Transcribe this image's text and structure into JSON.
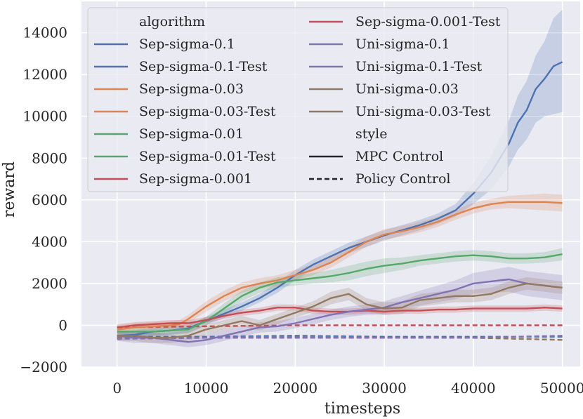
{
  "chart_data": {
    "type": "line",
    "title": "",
    "xlabel": "timesteps",
    "ylabel": "reward",
    "xlim": [
      -4000,
      52000
    ],
    "ylim": [
      -2000,
      15500
    ],
    "xticks": [
      0,
      10000,
      20000,
      30000,
      40000,
      50000
    ],
    "xtick_labels": [
      "0",
      "10000",
      "20000",
      "30000",
      "40000",
      "50000"
    ],
    "yticks": [
      -2000,
      0,
      2000,
      4000,
      6000,
      8000,
      10000,
      12000,
      14000
    ],
    "ytick_labels": [
      "−2000",
      "0",
      "2000",
      "4000",
      "6000",
      "8000",
      "10000",
      "12000",
      "14000"
    ],
    "grid": true,
    "background": "#eaeaf2",
    "legend": {
      "placement": "top-left",
      "left_column": [
        {
          "label": "algorithm",
          "kind": "header"
        },
        {
          "label": "Sep-sigma-0.1",
          "kind": "line",
          "color": "#4c72b0",
          "dash": "solid"
        },
        {
          "label": "Sep-sigma-0.1-Test",
          "kind": "line",
          "color": "#4c72b0",
          "dash": "solid"
        },
        {
          "label": "Sep-sigma-0.03",
          "kind": "line",
          "color": "#dd8452",
          "dash": "solid"
        },
        {
          "label": "Sep-sigma-0.03-Test",
          "kind": "line",
          "color": "#dd8452",
          "dash": "solid"
        },
        {
          "label": "Sep-sigma-0.01",
          "kind": "line",
          "color": "#55a868",
          "dash": "solid"
        },
        {
          "label": "Sep-sigma-0.01-Test",
          "kind": "line",
          "color": "#55a868",
          "dash": "solid"
        },
        {
          "label": "Sep-sigma-0.001",
          "kind": "line",
          "color": "#c44e52",
          "dash": "solid"
        }
      ],
      "right_column": [
        {
          "label": "Sep-sigma-0.001-Test",
          "kind": "line",
          "color": "#c44e52",
          "dash": "solid"
        },
        {
          "label": "Uni-sigma-0.1",
          "kind": "line",
          "color": "#8172b3",
          "dash": "solid"
        },
        {
          "label": "Uni-sigma-0.1-Test",
          "kind": "line",
          "color": "#8172b3",
          "dash": "solid"
        },
        {
          "label": "Uni-sigma-0.03",
          "kind": "line",
          "color": "#937860",
          "dash": "solid"
        },
        {
          "label": "Uni-sigma-0.03-Test",
          "kind": "line",
          "color": "#937860",
          "dash": "solid"
        },
        {
          "label": "style",
          "kind": "header"
        },
        {
          "label": "MPC Control",
          "kind": "line",
          "color": "#262626",
          "dash": "solid"
        },
        {
          "label": "Policy Control",
          "kind": "line",
          "color": "#262626",
          "dash": "dashed"
        }
      ]
    },
    "series": [
      {
        "name": "Sep-sigma-0.1",
        "color": "#4c72b0",
        "style": "solid",
        "x": [
          0,
          2000,
          4000,
          6000,
          8000,
          10000,
          12000,
          14000,
          16000,
          18000,
          20000,
          22000,
          24000,
          26000,
          28000,
          30000,
          32000,
          34000,
          36000,
          38000,
          40000,
          42000,
          44000,
          45000,
          46000,
          47000,
          48000,
          49000,
          50000
        ],
        "y": [
          -500,
          -450,
          -300,
          -250,
          -150,
          200,
          550,
          900,
          1300,
          1800,
          2400,
          2900,
          3300,
          3700,
          4000,
          4300,
          4550,
          4800,
          5100,
          5500,
          6300,
          7300,
          8700,
          9700,
          10300,
          11300,
          11800,
          12400,
          12600
        ],
        "lower": [
          -700,
          -650,
          -500,
          -450,
          -350,
          0,
          350,
          700,
          1100,
          1550,
          2150,
          2650,
          3050,
          3450,
          3750,
          4050,
          4300,
          4550,
          4850,
          5200,
          5800,
          6500,
          7600,
          8400,
          8900,
          9700,
          10000,
          10100,
          10200
        ],
        "upper": [
          -300,
          -250,
          -100,
          -50,
          50,
          400,
          750,
          1100,
          1500,
          2050,
          2650,
          3150,
          3550,
          3950,
          4250,
          4550,
          4800,
          5050,
          5350,
          5800,
          6800,
          8100,
          9800,
          11000,
          11700,
          12900,
          13600,
          14700,
          15100
        ]
      },
      {
        "name": "Sep-sigma-0.03",
        "color": "#dd8452",
        "style": "solid",
        "x": [
          0,
          2000,
          4000,
          6000,
          7000,
          8000,
          10000,
          12000,
          14000,
          16000,
          18000,
          20000,
          22000,
          24000,
          26000,
          28000,
          30000,
          32000,
          34000,
          36000,
          38000,
          40000,
          42000,
          44000,
          46000,
          48000,
          50000
        ],
        "y": [
          -200,
          -100,
          -50,
          0,
          50,
          300,
          900,
          1400,
          1800,
          2000,
          2150,
          2400,
          2650,
          3000,
          3500,
          4000,
          4350,
          4500,
          4700,
          4950,
          5300,
          5600,
          5800,
          5900,
          5900,
          5900,
          5850
        ],
        "lower": [
          -400,
          -300,
          -250,
          -200,
          -150,
          100,
          650,
          1150,
          1550,
          1750,
          1900,
          2150,
          2400,
          2750,
          3250,
          3750,
          4100,
          4250,
          4450,
          4700,
          5050,
          5350,
          5550,
          5600,
          5550,
          5500,
          5450
        ],
        "upper": [
          0,
          100,
          150,
          200,
          250,
          500,
          1150,
          1650,
          2050,
          2250,
          2400,
          2650,
          2900,
          3250,
          3750,
          4250,
          4600,
          4750,
          4950,
          5200,
          5550,
          5850,
          6050,
          6200,
          6250,
          6300,
          6250
        ]
      },
      {
        "name": "Sep-sigma-0.01",
        "color": "#55a868",
        "style": "solid",
        "x": [
          0,
          4000,
          8000,
          10000,
          12000,
          14000,
          16000,
          18000,
          20000,
          22000,
          24000,
          26000,
          28000,
          30000,
          32000,
          34000,
          36000,
          38000,
          40000,
          42000,
          44000,
          46000,
          48000,
          50000
        ],
        "y": [
          -300,
          -300,
          -200,
          200,
          800,
          1400,
          1800,
          2050,
          2150,
          2250,
          2350,
          2500,
          2700,
          2850,
          2950,
          3100,
          3200,
          3300,
          3350,
          3300,
          3200,
          3200,
          3250,
          3400
        ],
        "lower": [
          -500,
          -500,
          -400,
          0,
          550,
          1150,
          1550,
          1800,
          1900,
          2000,
          2050,
          2150,
          2350,
          2500,
          2650,
          2850,
          2950,
          3050,
          3100,
          3050,
          2950,
          2950,
          3000,
          3100
        ],
        "upper": [
          -100,
          -100,
          0,
          400,
          1050,
          1650,
          2050,
          2300,
          2400,
          2500,
          2650,
          2850,
          3050,
          3200,
          3250,
          3350,
          3450,
          3550,
          3600,
          3550,
          3450,
          3450,
          3500,
          3700
        ]
      },
      {
        "name": "Sep-sigma-0.001",
        "color": "#c44e52",
        "style": "solid",
        "x": [
          0,
          2000,
          4000,
          6000,
          8000,
          10000,
          12000,
          14000,
          16000,
          18000,
          20000,
          22000,
          24000,
          26000,
          28000,
          30000,
          32000,
          34000,
          36000,
          38000,
          40000,
          42000,
          44000,
          46000,
          48000,
          50000
        ],
        "y": [
          -100,
          0,
          50,
          100,
          100,
          250,
          450,
          600,
          700,
          850,
          850,
          700,
          650,
          650,
          700,
          650,
          700,
          700,
          750,
          750,
          800,
          800,
          800,
          800,
          850,
          800
        ],
        "lower": [
          -250,
          -150,
          -100,
          -50,
          -50,
          100,
          300,
          450,
          550,
          700,
          700,
          550,
          500,
          500,
          550,
          500,
          550,
          550,
          600,
          600,
          650,
          650,
          650,
          650,
          700,
          650
        ],
        "upper": [
          50,
          150,
          200,
          250,
          250,
          400,
          600,
          750,
          850,
          1000,
          1000,
          850,
          800,
          800,
          850,
          800,
          850,
          850,
          900,
          900,
          950,
          950,
          950,
          950,
          1000,
          950
        ]
      },
      {
        "name": "Uni-sigma-0.1",
        "color": "#8172b3",
        "style": "solid",
        "x": [
          0,
          2000,
          4000,
          6000,
          8000,
          10000,
          12000,
          14000,
          16000,
          18000,
          20000,
          22000,
          24000,
          26000,
          28000,
          30000,
          32000,
          34000,
          36000,
          38000,
          40000,
          42000,
          44000,
          46000,
          48000,
          50000
        ],
        "y": [
          -500,
          -600,
          -600,
          -700,
          -800,
          -700,
          -500,
          -300,
          -100,
          -50,
          100,
          300,
          500,
          650,
          750,
          850,
          1100,
          1300,
          1500,
          1700,
          2000,
          2100,
          2200,
          2000,
          1900,
          1800
        ],
        "lower": [
          -750,
          -850,
          -850,
          -950,
          -1050,
          -950,
          -750,
          -550,
          -350,
          -300,
          -150,
          50,
          250,
          400,
          500,
          550,
          800,
          950,
          1100,
          1250,
          1500,
          1550,
          1600,
          1400,
          1300,
          1200
        ],
        "upper": [
          -250,
          -350,
          -350,
          -450,
          -550,
          -450,
          -250,
          -50,
          150,
          200,
          350,
          550,
          750,
          900,
          1000,
          1150,
          1400,
          1650,
          1900,
          2150,
          2500,
          2650,
          2800,
          2600,
          2500,
          2400
        ]
      },
      {
        "name": "Uni-sigma-0.03",
        "color": "#937860",
        "style": "solid",
        "x": [
          0,
          2000,
          4000,
          6000,
          8000,
          10000,
          12000,
          14000,
          16000,
          18000,
          20000,
          22000,
          24000,
          26000,
          28000,
          30000,
          32000,
          34000,
          36000,
          38000,
          40000,
          42000,
          44000,
          46000,
          48000,
          50000
        ],
        "y": [
          -500,
          -500,
          -600,
          -600,
          -500,
          -200,
          0,
          200,
          0,
          300,
          600,
          900,
          1300,
          1500,
          1000,
          800,
          850,
          1200,
          1300,
          1400,
          1400,
          1500,
          1800,
          2000,
          1900,
          1800
        ],
        "lower": [
          -750,
          -750,
          -850,
          -850,
          -750,
          -450,
          -250,
          -50,
          -250,
          50,
          350,
          650,
          1000,
          1200,
          700,
          500,
          550,
          900,
          1000,
          1100,
          1100,
          1200,
          1500,
          1700,
          1600,
          1500
        ],
        "upper": [
          -250,
          -250,
          -350,
          -350,
          -250,
          50,
          250,
          450,
          250,
          550,
          850,
          1150,
          1600,
          1800,
          1300,
          1100,
          1150,
          1500,
          1600,
          1700,
          1700,
          1800,
          2100,
          2300,
          2200,
          2100
        ]
      },
      {
        "name": "Sep-sigma-0.001-Test",
        "color": "#c44e52",
        "style": "dashed",
        "x": [
          0,
          10000,
          20000,
          30000,
          40000,
          50000
        ],
        "y": [
          -100,
          -50,
          0,
          0,
          0,
          0
        ]
      },
      {
        "name": "Sep-sigma-0.1-Test",
        "color": "#4c72b0",
        "style": "dashed",
        "x": [
          0,
          10000,
          20000,
          30000,
          40000,
          50000
        ],
        "y": [
          -550,
          -550,
          -500,
          -550,
          -550,
          -550
        ]
      },
      {
        "name": "Uni-sigma-0.03-Test",
        "color": "#937860",
        "style": "dashed",
        "x": [
          0,
          10000,
          20000,
          30000,
          40000,
          50000
        ],
        "y": [
          -600,
          -600,
          -550,
          -600,
          -600,
          -700
        ]
      },
      {
        "name": "Uni-sigma-0.1-Test",
        "color": "#8172b3",
        "style": "dashed",
        "x": [
          0,
          10000,
          20000,
          30000,
          40000,
          50000
        ],
        "y": [
          -650,
          -600,
          -600,
          -600,
          -600,
          -500
        ]
      }
    ]
  }
}
